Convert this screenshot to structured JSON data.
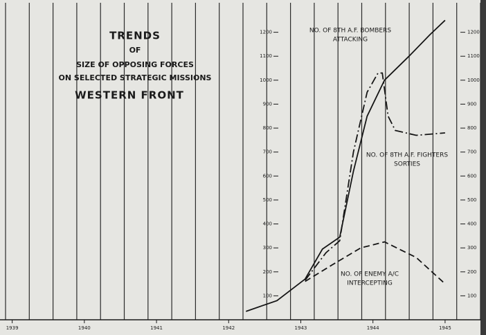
{
  "chart_data": {
    "type": "line",
    "title_lines": [
      "TRENDS",
      "OF",
      "SIZE OF OPPOSING FORCES",
      "ON SELECTED STRATEGIC MISSIONS",
      "WESTERN FRONT"
    ],
    "xlim": [
      1938.85,
      1945.5
    ],
    "xticks": [
      1939,
      1940,
      1941,
      1942,
      1943,
      1944,
      1945
    ],
    "ylim": [
      0,
      1300
    ],
    "yticks": [
      100,
      200,
      300,
      400,
      500,
      600,
      700,
      800,
      900,
      1000,
      1100,
      1200
    ],
    "series": [
      {
        "label_lines": [
          "NO. OF 8TH A.F. BOMBERS",
          "ATTACKING"
        ],
        "color": "#151515",
        "dash": "solid",
        "x": [
          1942.24,
          1942.67,
          1943.06,
          1943.3,
          1943.54,
          1943.73,
          1943.92,
          1944.16,
          1944.5,
          1944.79,
          1945.0
        ],
        "values": [
          35,
          80,
          170,
          295,
          345,
          620,
          850,
          1000,
          1100,
          1190,
          1250
        ]
      },
      {
        "label_lines": [
          "NO. OF 8TH A.F. FIGHTERS",
          "SORTIES"
        ],
        "color": "#151515",
        "dash": "dashdot",
        "x": [
          1943.06,
          1943.35,
          1943.54,
          1943.73,
          1943.92,
          1944.07,
          1944.13,
          1944.21,
          1944.31,
          1944.6,
          1945.0
        ],
        "values": [
          165,
          280,
          330,
          700,
          950,
          1030,
          1030,
          850,
          790,
          770,
          780
        ]
      },
      {
        "label_lines": [
          "NO. OF ENEMY A/C",
          "INTERCEPTING"
        ],
        "color": "#151515",
        "dash": "dashed",
        "x": [
          1943.06,
          1943.44,
          1943.83,
          1944.16,
          1944.6,
          1945.0
        ],
        "values": [
          160,
          230,
          300,
          325,
          260,
          150
        ]
      }
    ]
  }
}
